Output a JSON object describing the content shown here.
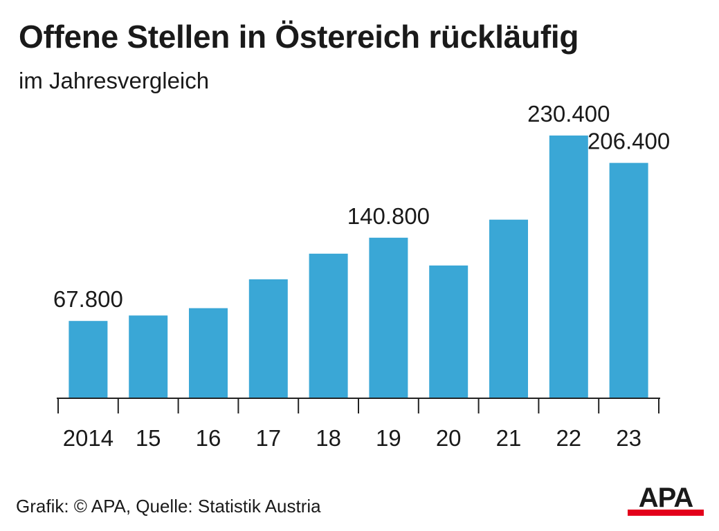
{
  "header": {
    "title": "Offene Stellen in Östereich rückläufig",
    "subtitle": "im Jahresvergleich"
  },
  "footer": {
    "source": "Grafik: © APA, Quelle: Statistik Austria",
    "logo_text": "APA"
  },
  "colors": {
    "bar": "#3aa7d6",
    "axis": "#222222",
    "text": "#1a1a1a",
    "logo_red": "#e3001b"
  },
  "chart_data": {
    "type": "bar",
    "title": "Offene Stellen in Östereich rückläufig",
    "subtitle": "im Jahresvergleich",
    "xlabel": "",
    "ylabel": "",
    "categories": [
      "2014",
      "15",
      "16",
      "17",
      "18",
      "19",
      "20",
      "21",
      "22",
      "23"
    ],
    "values": [
      67800,
      72600,
      79000,
      104300,
      126800,
      140800,
      116400,
      156600,
      230400,
      206400
    ],
    "data_labels": [
      {
        "index": 0,
        "text": "67.800"
      },
      {
        "index": 5,
        "text": "140.800"
      },
      {
        "index": 8,
        "text": "230.400"
      },
      {
        "index": 9,
        "text": "206.400"
      }
    ],
    "ylim": [
      0,
      230400
    ],
    "grid": false,
    "legend": "none"
  }
}
